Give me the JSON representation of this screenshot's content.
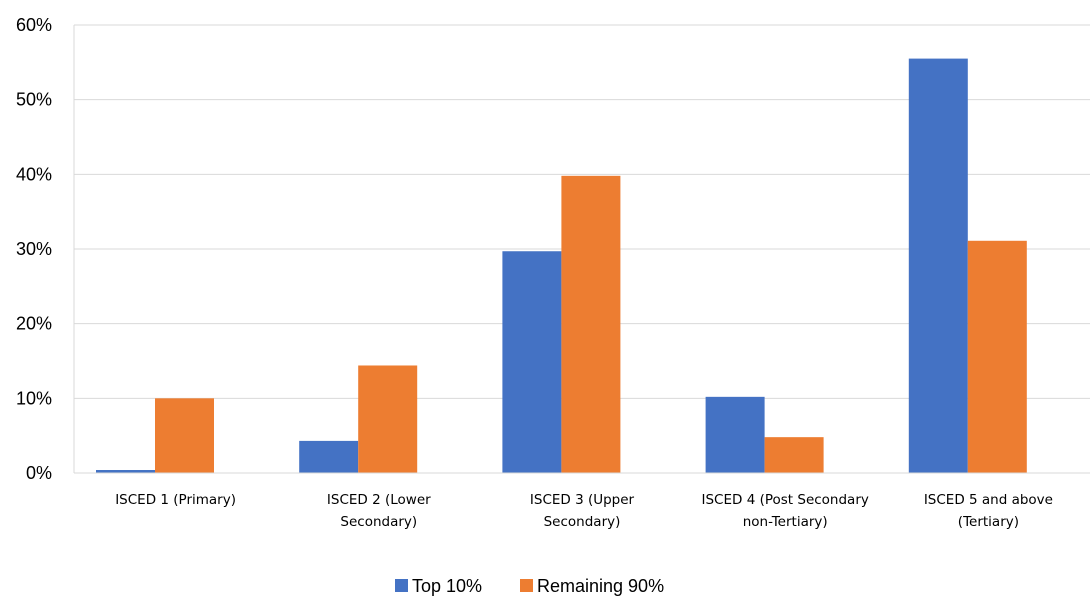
{
  "chart_data": {
    "type": "bar",
    "title": "",
    "xlabel": "",
    "ylabel": "",
    "ylim": [
      0,
      60
    ],
    "yticks": [
      "0%",
      "10%",
      "20%",
      "30%",
      "40%",
      "50%",
      "60%"
    ],
    "categories": [
      [
        "ISCED 1 (Primary)"
      ],
      [
        "ISCED 2 (Lower",
        "Secondary)"
      ],
      [
        "ISCED 3 (Upper",
        "Secondary)"
      ],
      [
        "ISCED  4 (Post Secondary",
        "non-Tertiary)"
      ],
      [
        "ISCED  5 and above",
        "(Tertiary)"
      ]
    ],
    "series": [
      {
        "name": "Top 10%",
        "color": "#4472C4",
        "values": [
          0.4,
          4.3,
          29.7,
          10.2,
          55.5
        ]
      },
      {
        "name": "Remaining 90%",
        "color": "#ED7D31",
        "values": [
          10.0,
          14.4,
          39.8,
          4.8,
          31.1
        ]
      }
    ],
    "grid": true,
    "legend_position": "bottom-center"
  }
}
